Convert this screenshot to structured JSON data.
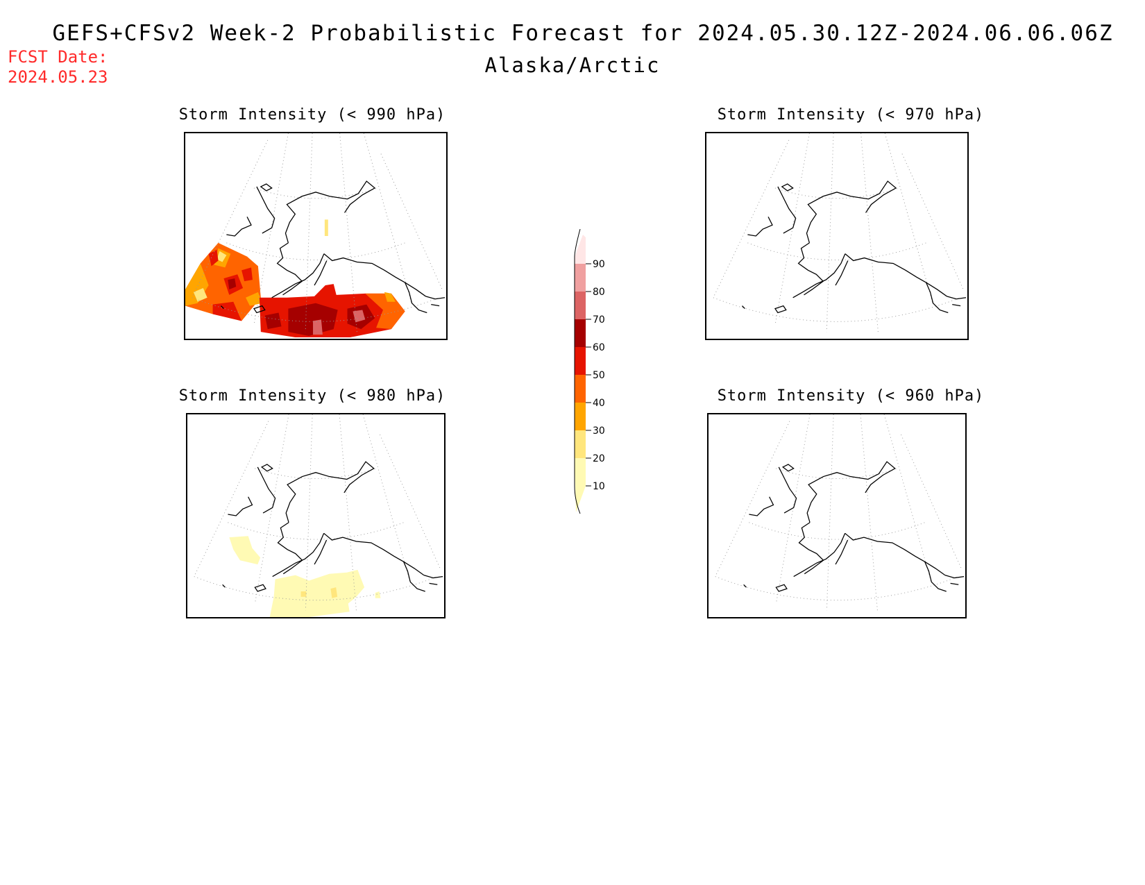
{
  "header": {
    "title": "GEFS+CFSv2 Week-2 Probabilistic Forecast for 2024.05.30.12Z-2024.06.06.06Z",
    "region": "Alaska/Arctic",
    "fcst_date_label": "FCST Date:",
    "fcst_date_value": "2024.05.23"
  },
  "panels": [
    {
      "id": "p990",
      "title": "Storm Intensity (< 990 hPa)",
      "threshold_hPa": 990,
      "max_probability_percent": 70
    },
    {
      "id": "p970",
      "title": "Storm Intensity (< 970 hPa)",
      "threshold_hPa": 970,
      "max_probability_percent": 0
    },
    {
      "id": "p980",
      "title": "Storm Intensity (< 980 hPa)",
      "threshold_hPa": 980,
      "max_probability_percent": 20
    },
    {
      "id": "p960",
      "title": "Storm Intensity (< 960 hPa)",
      "threshold_hPa": 960,
      "max_probability_percent": 0
    }
  ],
  "colorbar": {
    "labels": [
      "90",
      "80",
      "70",
      "60",
      "50",
      "40",
      "30",
      "20",
      "10"
    ],
    "colors_bottom_to_top": [
      "#fffab4",
      "#ffe67d",
      "#ffa500",
      "#ff6400",
      "#e61400",
      "#a50000",
      "#dc6464",
      "#f0a0a0",
      "#ffe6e6"
    ]
  }
}
